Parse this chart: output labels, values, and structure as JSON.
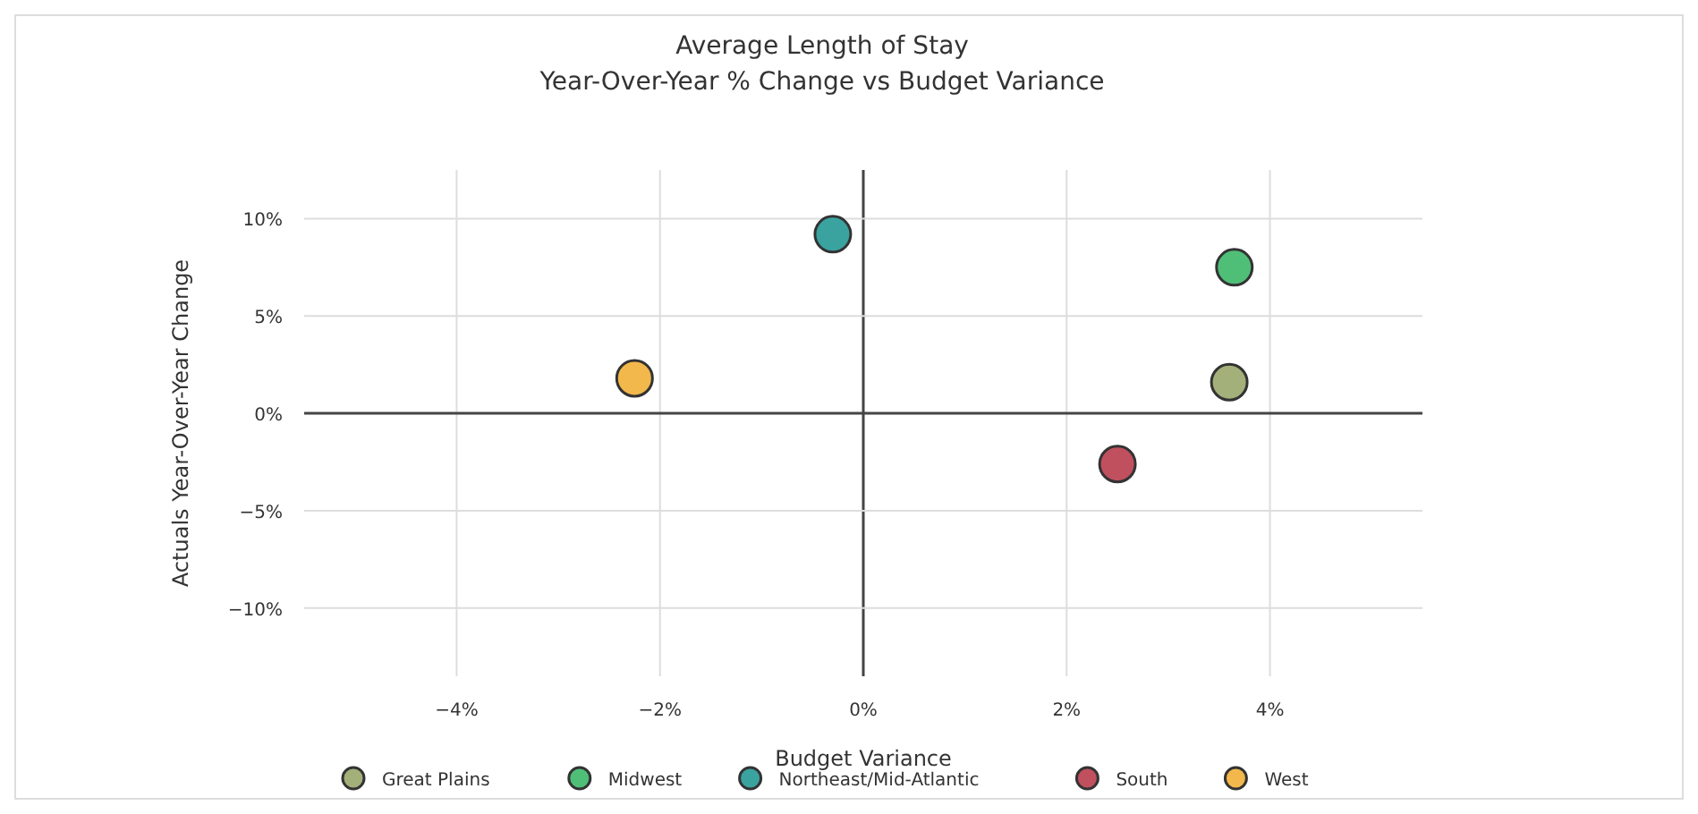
{
  "chart_data": {
    "type": "scatter",
    "title": "Average Length of Stay",
    "subtitle": "Year-Over-Year % Change vs Budget Variance",
    "xlabel": "Budget Variance",
    "ylabel": "Actuals Year-Over-Year Change",
    "xlim": [
      -5.5,
      5.5
    ],
    "ylim": [
      -13.5,
      12.5
    ],
    "xticks": [
      {
        "value": -4,
        "label": "−4%"
      },
      {
        "value": -2,
        "label": "−2%"
      },
      {
        "value": 0,
        "label": "0%"
      },
      {
        "value": 2,
        "label": "2%"
      },
      {
        "value": 4,
        "label": "4%"
      }
    ],
    "yticks": [
      {
        "value": -10,
        "label": "−10%"
      },
      {
        "value": -5,
        "label": "−5%"
      },
      {
        "value": 0,
        "label": "0%"
      },
      {
        "value": 5,
        "label": "5%"
      },
      {
        "value": 10,
        "label": "10%"
      }
    ],
    "grid": true,
    "legend": "bottom",
    "marker": "circle",
    "series": [
      {
        "name": "Great Plains",
        "color": "#a3b07a",
        "x": [
          3.6
        ],
        "values": [
          1.6
        ]
      },
      {
        "name": "Midwest",
        "color": "#4fbf78",
        "x": [
          3.65
        ],
        "values": [
          7.5
        ]
      },
      {
        "name": "Northeast/Mid-Atlantic",
        "color": "#3aa3a0",
        "x": [
          -0.3
        ],
        "values": [
          9.2
        ]
      },
      {
        "name": "South",
        "color": "#c0505e",
        "x": [
          2.5
        ],
        "values": [
          -2.6
        ]
      },
      {
        "name": "West",
        "color": "#f2b84b",
        "x": [
          -2.25
        ],
        "values": [
          1.8
        ]
      }
    ]
  }
}
